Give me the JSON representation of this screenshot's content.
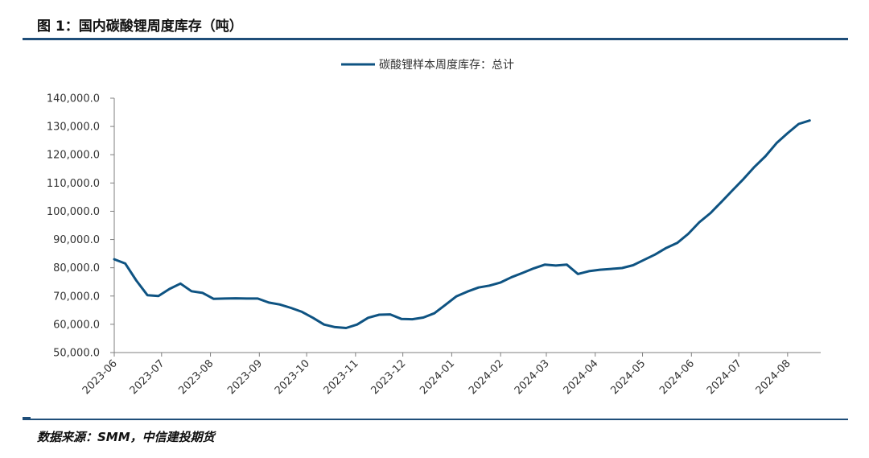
{
  "figure": {
    "title": "图 1：国内碳酸锂周度库存（吨）",
    "source": "数据来源：SMM，中信建投期货"
  },
  "colors": {
    "series": "#0e5382",
    "axis": "#7f7f7f",
    "rule": "#1f4e79"
  },
  "chart_data": {
    "type": "line",
    "title": "",
    "xlabel": "",
    "ylabel": "",
    "ylim": [
      50000,
      140000
    ],
    "yticks": [
      50000,
      60000,
      70000,
      80000,
      90000,
      100000,
      110000,
      120000,
      130000,
      140000
    ],
    "ytick_labels": [
      "50,000.0",
      "60,000.0",
      "70,000.0",
      "80,000.0",
      "90,000.0",
      "100,000.0",
      "110,000.0",
      "120,000.0",
      "130,000.0",
      "140,000.0"
    ],
    "xtick_labels": [
      "2023-06",
      "2023-07",
      "2023-08",
      "2023-09",
      "2023-10",
      "2023-11",
      "2023-12",
      "2024-01",
      "2024-02",
      "2024-03",
      "2024-04",
      "2024-05",
      "2024-06",
      "2024-07",
      "2024-08"
    ],
    "grid": false,
    "legend": "top-center",
    "series": [
      {
        "name": "碳酸锂样本周度库存：总计",
        "x": [
          "2023-06-01",
          "2023-06-08",
          "2023-06-15",
          "2023-06-22",
          "2023-06-29",
          "2023-07-06",
          "2023-07-13",
          "2023-07-20",
          "2023-07-27",
          "2023-08-03",
          "2023-08-10",
          "2023-08-17",
          "2023-08-24",
          "2023-08-31",
          "2023-09-07",
          "2023-09-14",
          "2023-09-21",
          "2023-09-28",
          "2023-10-05",
          "2023-10-12",
          "2023-10-19",
          "2023-10-26",
          "2023-11-02",
          "2023-11-09",
          "2023-11-16",
          "2023-11-23",
          "2023-11-30",
          "2023-12-07",
          "2023-12-14",
          "2023-12-21",
          "2023-12-28",
          "2024-01-04",
          "2024-01-11",
          "2024-01-18",
          "2024-01-25",
          "2024-02-01",
          "2024-02-08",
          "2024-02-15",
          "2024-02-22",
          "2024-02-29",
          "2024-03-07",
          "2024-03-14",
          "2024-03-21",
          "2024-03-28",
          "2024-04-04",
          "2024-04-11",
          "2024-04-18",
          "2024-04-25",
          "2024-05-02",
          "2024-05-09",
          "2024-05-16",
          "2024-05-23",
          "2024-05-30",
          "2024-06-06",
          "2024-06-13",
          "2024-06-20",
          "2024-06-27",
          "2024-07-04",
          "2024-07-11",
          "2024-07-18",
          "2024-07-25",
          "2024-08-01",
          "2024-08-08",
          "2024-08-15"
        ],
        "values": [
          83000,
          81500,
          75500,
          70300,
          70000,
          72500,
          74400,
          71700,
          71100,
          69000,
          69100,
          69200,
          69100,
          69100,
          67700,
          67000,
          65800,
          64400,
          62300,
          59900,
          59000,
          58700,
          59900,
          62300,
          63400,
          63500,
          61900,
          61800,
          62400,
          63900,
          66900,
          69900,
          71600,
          73000,
          73700,
          74800,
          76700,
          78200,
          79800,
          81100,
          80800,
          81100,
          77800,
          78800,
          79300,
          79600,
          79900,
          80900,
          82800,
          84700,
          87000,
          88800,
          92000,
          96100,
          99300,
          103300,
          107400,
          111400,
          115700,
          119500,
          124100,
          127600,
          130900,
          132100
        ]
      }
    ]
  }
}
